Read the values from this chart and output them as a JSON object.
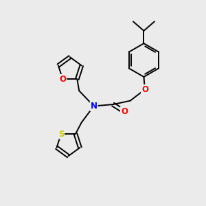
{
  "bg_color": "#ebebeb",
  "bond_color": "#000000",
  "bond_width": 1.4,
  "atom_colors": {
    "O": "#ff0000",
    "N": "#0000ff",
    "S": "#cccc00",
    "C": "#000000"
  },
  "font_size": 8.5,
  "fig_size": [
    3.0,
    3.0
  ],
  "dpi": 100
}
